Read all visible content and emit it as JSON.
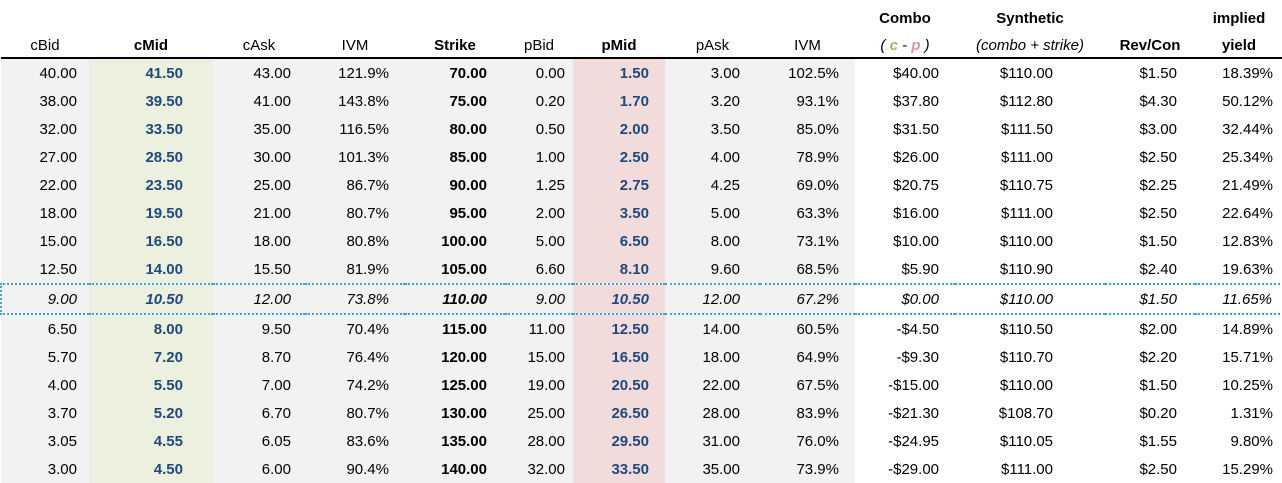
{
  "colors": {
    "mid_text_blue": "#1F497D",
    "call_band_green": "#EBF1DE",
    "put_band_pink": "#F2DCDB",
    "table_gray": "#F2F2F2",
    "combo_c_green": "#9BBB59",
    "combo_p_pink": "#D99694",
    "atm_dotted_blue": "#35A6DC"
  },
  "table": {
    "columns": [
      {
        "key": "cBid",
        "top": "",
        "label": "cBid"
      },
      {
        "key": "cMid",
        "top": "",
        "label": "cMid",
        "bold": true
      },
      {
        "key": "cAsk",
        "top": "",
        "label": "cAsk"
      },
      {
        "key": "ivm-call",
        "top": "",
        "label": "IVM"
      },
      {
        "key": "strike",
        "top": "",
        "label": "Strike",
        "bold": true
      },
      {
        "key": "pBid",
        "top": "",
        "label": "pBid"
      },
      {
        "key": "pMid",
        "top": "",
        "label": "pMid",
        "bold": true
      },
      {
        "key": "pAsk",
        "top": "",
        "label": "pAsk"
      },
      {
        "key": "ivm-put",
        "top": "",
        "label": "IVM"
      },
      {
        "key": "combo",
        "top": "Combo",
        "label": "",
        "sub": "combo"
      },
      {
        "key": "synthetic",
        "top": "Synthetic",
        "label": "",
        "sub": "synthetic"
      },
      {
        "key": "rev-con",
        "top": "",
        "label": "Rev/Con",
        "bold": true
      },
      {
        "key": "implied-yield",
        "top": "implied",
        "label": "yield",
        "bold": true
      }
    ],
    "combo_sub": {
      "open": "(",
      "c": "c",
      "dash": "-",
      "p": "p",
      "close": ")"
    },
    "synthetic_sub": "(combo + strike)",
    "rows": [
      {
        "atm": false,
        "cells": [
          "40.00",
          "41.50",
          "43.00",
          "121.9%",
          "70.00",
          "0.00",
          "1.50",
          "3.00",
          "102.5%",
          "$40.00",
          "$110.00",
          "$1.50",
          "18.39%"
        ]
      },
      {
        "atm": false,
        "cells": [
          "38.00",
          "39.50",
          "41.00",
          "143.8%",
          "75.00",
          "0.20",
          "1.70",
          "3.20",
          "93.1%",
          "$37.80",
          "$112.80",
          "$4.30",
          "50.12%"
        ]
      },
      {
        "atm": false,
        "cells": [
          "32.00",
          "33.50",
          "35.00",
          "116.5%",
          "80.00",
          "0.50",
          "2.00",
          "3.50",
          "85.0%",
          "$31.50",
          "$111.50",
          "$3.00",
          "32.44%"
        ]
      },
      {
        "atm": false,
        "cells": [
          "27.00",
          "28.50",
          "30.00",
          "101.3%",
          "85.00",
          "1.00",
          "2.50",
          "4.00",
          "78.9%",
          "$26.00",
          "$111.00",
          "$2.50",
          "25.34%"
        ]
      },
      {
        "atm": false,
        "cells": [
          "22.00",
          "23.50",
          "25.00",
          "86.7%",
          "90.00",
          "1.25",
          "2.75",
          "4.25",
          "69.0%",
          "$20.75",
          "$110.75",
          "$2.25",
          "21.49%"
        ]
      },
      {
        "atm": false,
        "cells": [
          "18.00",
          "19.50",
          "21.00",
          "80.7%",
          "95.00",
          "2.00",
          "3.50",
          "5.00",
          "63.3%",
          "$16.00",
          "$111.00",
          "$2.50",
          "22.64%"
        ]
      },
      {
        "atm": false,
        "cells": [
          "15.00",
          "16.50",
          "18.00",
          "80.8%",
          "100.00",
          "5.00",
          "6.50",
          "8.00",
          "73.1%",
          "$10.00",
          "$110.00",
          "$1.50",
          "12.83%"
        ]
      },
      {
        "atm": false,
        "cells": [
          "12.50",
          "14.00",
          "15.50",
          "81.9%",
          "105.00",
          "6.60",
          "8.10",
          "9.60",
          "68.5%",
          "$5.90",
          "$110.90",
          "$2.40",
          "19.63%"
        ]
      },
      {
        "atm": true,
        "cells": [
          "9.00",
          "10.50",
          "12.00",
          "73.8%",
          "110.00",
          "9.00",
          "10.50",
          "12.00",
          "67.2%",
          "$0.00",
          "$110.00",
          "$1.50",
          "11.65%"
        ]
      },
      {
        "atm": false,
        "cells": [
          "6.50",
          "8.00",
          "9.50",
          "70.4%",
          "115.00",
          "11.00",
          "12.50",
          "14.00",
          "60.5%",
          "-$4.50",
          "$110.50",
          "$2.00",
          "14.89%"
        ]
      },
      {
        "atm": false,
        "cells": [
          "5.70",
          "7.20",
          "8.70",
          "76.4%",
          "120.00",
          "15.00",
          "16.50",
          "18.00",
          "64.9%",
          "-$9.30",
          "$110.70",
          "$2.20",
          "15.71%"
        ]
      },
      {
        "atm": false,
        "cells": [
          "4.00",
          "5.50",
          "7.00",
          "74.2%",
          "125.00",
          "19.00",
          "20.50",
          "22.00",
          "67.5%",
          "-$15.00",
          "$110.00",
          "$1.50",
          "10.25%"
        ]
      },
      {
        "atm": false,
        "cells": [
          "3.70",
          "5.20",
          "6.70",
          "80.7%",
          "130.00",
          "25.00",
          "26.50",
          "28.00",
          "83.9%",
          "-$21.30",
          "$108.70",
          "$0.20",
          "1.31%"
        ]
      },
      {
        "atm": false,
        "cells": [
          "3.05",
          "4.55",
          "6.05",
          "83.6%",
          "135.00",
          "28.00",
          "29.50",
          "31.00",
          "76.0%",
          "-$24.95",
          "$110.05",
          "$1.55",
          "9.80%"
        ]
      },
      {
        "atm": false,
        "cells": [
          "3.00",
          "4.50",
          "6.00",
          "90.4%",
          "140.00",
          "32.00",
          "33.50",
          "35.00",
          "73.9%",
          "-$29.00",
          "$111.00",
          "$2.50",
          "15.29%"
        ]
      }
    ]
  }
}
